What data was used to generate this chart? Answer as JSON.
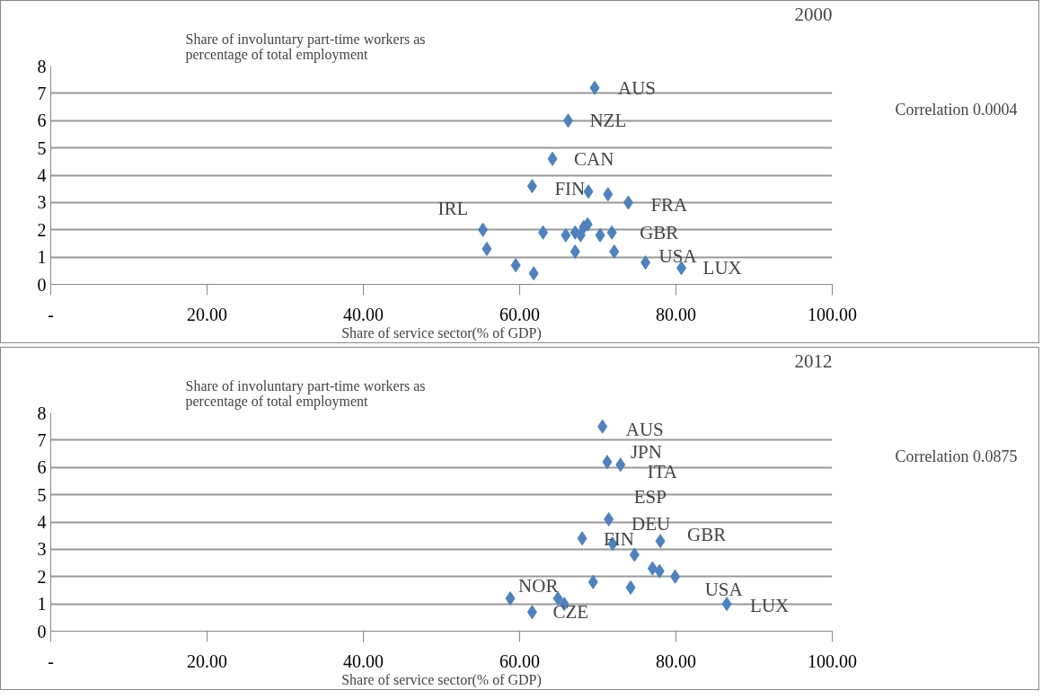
{
  "chart_data": [
    {
      "type": "scatter",
      "title": "2000",
      "ylabel": "Share of involuntary part-time workers as percentage of total employment",
      "xlabel": "Share of service sector(% of GDP)",
      "marker": "diamond",
      "grid": "y",
      "xlim": [
        0,
        100
      ],
      "ylim": [
        0,
        8
      ],
      "xticks": [
        {
          "value": 0,
          "label": "-"
        },
        {
          "value": 20,
          "label": "20.00"
        },
        {
          "value": 40,
          "label": "40.00"
        },
        {
          "value": 60,
          "label": "60.00"
        },
        {
          "value": 80,
          "label": "80.00"
        },
        {
          "value": 100,
          "label": "100.00"
        }
      ],
      "yticks": [
        0,
        1,
        2,
        3,
        4,
        5,
        6,
        7,
        8
      ],
      "x": [
        69.6,
        66.2,
        64.2,
        61.6,
        68.8,
        71.3,
        73.9,
        55.3,
        55.8,
        63.0,
        65.9,
        67.1,
        68.2,
        68.7,
        67.8,
        70.3,
        71.8,
        67.1,
        72.1,
        76.1,
        80.7,
        59.5,
        61.8
      ],
      "series": [
        {
          "color": "#4f81bd",
          "values": [
            7.2,
            6.0,
            4.6,
            3.6,
            3.4,
            3.3,
            3.0,
            2.0,
            1.3,
            1.9,
            1.8,
            1.9,
            2.1,
            2.2,
            1.8,
            1.8,
            1.9,
            1.2,
            1.2,
            0.8,
            0.6,
            0.7,
            0.4
          ]
        }
      ],
      "annotations": [
        "Correlation 0.0004",
        {
          "text": "AUS",
          "x": 69.6,
          "y": 7.2
        },
        {
          "text": "NZL",
          "x": 66.2,
          "y": 6.0
        },
        {
          "text": "CAN",
          "x": 64.2,
          "y": 4.6
        },
        {
          "text": "FIN",
          "x": 61.6,
          "y": 3.6
        },
        {
          "text": "FRA",
          "x": 73.9,
          "y": 3.0
        },
        {
          "text": "IRL",
          "x": 55.3,
          "y": 2.0
        },
        {
          "text": "GBR",
          "x": 71.8,
          "y": 1.9
        },
        {
          "text": "USA",
          "x": 76.1,
          "y": 0.8
        },
        {
          "text": "LUX",
          "x": 80.7,
          "y": 0.6
        }
      ]
    },
    {
      "type": "scatter",
      "title": "2012",
      "ylabel": "Share of involuntary part-time workers as percentage of total employment",
      "xlabel": "Share of service sector(% of GDP)",
      "marker": "diamond",
      "grid": "y",
      "xlim": [
        0,
        100
      ],
      "ylim": [
        0,
        8
      ],
      "xticks": [
        {
          "value": 0,
          "label": "-"
        },
        {
          "value": 20,
          "label": "20.00"
        },
        {
          "value": 40,
          "label": "40.00"
        },
        {
          "value": 60,
          "label": "60.00"
        },
        {
          "value": 80,
          "label": "80.00"
        },
        {
          "value": 100,
          "label": "100.00"
        }
      ],
      "yticks": [
        0,
        1,
        2,
        3,
        4,
        5,
        6,
        7,
        8
      ],
      "x": [
        70.6,
        71.2,
        72.9,
        71.4,
        68.0,
        71.9,
        78.0,
        74.7,
        77.0,
        77.9,
        79.9,
        69.4,
        74.2,
        58.8,
        64.9,
        65.7,
        61.6,
        86.5
      ],
      "series": [
        {
          "color": "#4f81bd",
          "values": [
            7.5,
            6.2,
            6.1,
            4.1,
            3.4,
            3.2,
            3.3,
            2.8,
            2.3,
            2.2,
            2.0,
            1.8,
            1.6,
            1.2,
            1.2,
            1.0,
            0.7,
            1.0
          ]
        }
      ],
      "annotations": [
        "Correlation 0.0875",
        {
          "text": "AUS",
          "x": 70.6,
          "y": 7.5
        },
        {
          "text": "JPN",
          "x": 71.2,
          "y": 6.2
        },
        {
          "text": "ITA",
          "x": 72.9,
          "y": 6.1
        },
        {
          "text": "ESP",
          "x": 71.4,
          "y": 4.1
        },
        {
          "text": "DEU",
          "x": 71.9,
          "y": 3.2
        },
        {
          "text": "GBR",
          "x": 78.0,
          "y": 3.3
        },
        {
          "text": "FIN",
          "x": 68.0,
          "y": 3.4
        },
        {
          "text": "NOR",
          "x": 58.8,
          "y": 1.2
        },
        {
          "text": "CZE",
          "x": 61.6,
          "y": 0.7
        },
        {
          "text": "USA",
          "x": 79.9,
          "y": 2.0
        },
        {
          "text": "LUX",
          "x": 86.5,
          "y": 1.0
        }
      ]
    }
  ]
}
